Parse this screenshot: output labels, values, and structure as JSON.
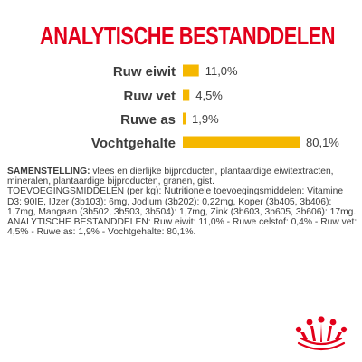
{
  "title": "ANALYTISCHE BESTANDDELEN",
  "colors": {
    "title": "#e2001a",
    "bar": "#f5b700",
    "text": "#3c3c3c",
    "logo": "#e2001a"
  },
  "chart_data": {
    "type": "bar",
    "orientation": "horizontal",
    "title": "ANALYTISCHE BESTANDDELEN",
    "categories": [
      "Ruw eiwit",
      "Ruw vet",
      "Ruwe as",
      "Vochtgehalte"
    ],
    "values": [
      11.0,
      4.5,
      1.9,
      80.1
    ],
    "value_labels": [
      "11,0%",
      "4,5%",
      "1,9%",
      "80,1%"
    ],
    "xlim": [
      0,
      80.1
    ],
    "grid": false,
    "legend": "none"
  },
  "composition": {
    "samenstelling_label": "SAMENSTELLING:",
    "samenstelling_text": " vlees en dierlijke bijproducten, plantaardige eiwitextracten, mineralen, plantaardige bijproducten, granen, gist.",
    "toevoegings_label": "TOEVOEGINGSMIDDELEN",
    "toevoegings_text": " (per kg): Nutritionele toevoegingsmiddelen: Vitamine D3: 90IE, IJzer (3b103): 6mg, Jodium (3b202): 0,22mg, Koper (3b405, 3b406): 1,7mg, Mangaan (3b502, 3b503, 3b504): 1,7mg, Zink (3b603, 3b605, 3b606): 17mg.",
    "analytische_label": "ANALYTISCHE BESTANDDELEN",
    "analytische_text": ": Ruw eiwit: 11,0% - Ruwe celstof: 0,4% - Ruw vet: 4,5% - Ruwe as: 1,9% - Vochtgehalte: 80,1%."
  },
  "logo": {
    "icon": "royal-canin-crown-logo"
  }
}
